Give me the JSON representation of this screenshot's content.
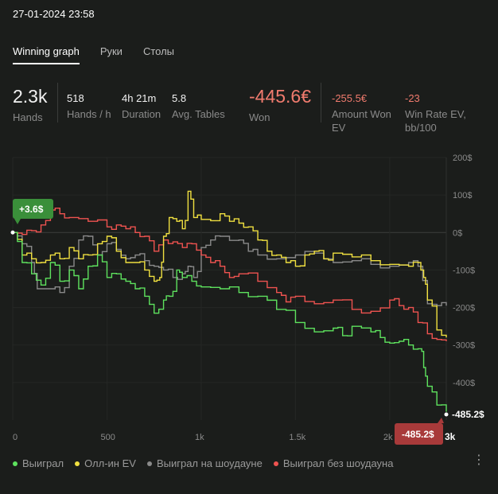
{
  "header": {
    "datetime": "27-01-2024 23:58"
  },
  "tabs": [
    {
      "label": "Winning graph",
      "active": true
    },
    {
      "label": "Руки",
      "active": false
    },
    {
      "label": "Столы",
      "active": false
    }
  ],
  "stats": {
    "hands": {
      "value": "2.3k",
      "label": "Hands"
    },
    "hands_per_hour": {
      "value": "518",
      "label": "Hands / h"
    },
    "duration": {
      "value": "4h 21m",
      "label": "Duration"
    },
    "avg_tables": {
      "value": "5.8",
      "label": "Avg. Tables"
    },
    "won": {
      "value": "-445.6€",
      "label": "Won"
    },
    "amount_won_ev": {
      "value": "-255.5€",
      "label1": "Amount Won",
      "label2": "EV"
    },
    "win_rate_ev": {
      "value": "-23",
      "label1": "Win Rate EV,",
      "label2": "bb/100"
    }
  },
  "chart_data": {
    "type": "line",
    "x_ticks": [
      "0",
      "500",
      "1k",
      "1.5k",
      "2k"
    ],
    "x_last_label": "3k",
    "y_ticks": [
      "200$",
      "100$",
      "0$",
      "-100$",
      "-200$",
      "-300$",
      "-400$"
    ],
    "xlim": [
      0,
      2300
    ],
    "ylim": [
      -500,
      200
    ],
    "start_badge": "+3.6$",
    "end_badge": "-485.2$",
    "end_label": "-485.2$",
    "series": [
      {
        "name": "Выиграл",
        "color": "#5ee25e",
        "points": [
          [
            0,
            0
          ],
          [
            50,
            -80
          ],
          [
            100,
            -110
          ],
          [
            150,
            -140
          ],
          [
            200,
            -80
          ],
          [
            250,
            -130
          ],
          [
            300,
            -100
          ],
          [
            350,
            -150
          ],
          [
            400,
            -90
          ],
          [
            450,
            -60
          ],
          [
            500,
            -120
          ],
          [
            550,
            -110
          ],
          [
            600,
            -130
          ],
          [
            650,
            -150
          ],
          [
            700,
            -170
          ],
          [
            750,
            -215
          ],
          [
            800,
            -180
          ],
          [
            830,
            -170
          ],
          [
            870,
            -100
          ],
          [
            900,
            -120
          ],
          [
            950,
            -130
          ],
          [
            1000,
            -145
          ],
          [
            1100,
            -150
          ],
          [
            1200,
            -160
          ],
          [
            1300,
            -170
          ],
          [
            1400,
            -205
          ],
          [
            1500,
            -240
          ],
          [
            1600,
            -265
          ],
          [
            1700,
            -255
          ],
          [
            1750,
            -275
          ],
          [
            1800,
            -250
          ],
          [
            1900,
            -265
          ],
          [
            1950,
            -280
          ],
          [
            2000,
            -295
          ],
          [
            2050,
            -290
          ],
          [
            2100,
            -300
          ],
          [
            2150,
            -310
          ],
          [
            2160,
            -310
          ],
          [
            2180,
            -360
          ],
          [
            2200,
            -410
          ],
          [
            2250,
            -460
          ],
          [
            2300,
            -485.2
          ]
        ]
      },
      {
        "name": "Олл-ин EV",
        "color": "#f0e040",
        "points": [
          [
            0,
            0
          ],
          [
            50,
            -60
          ],
          [
            100,
            -70
          ],
          [
            150,
            -80
          ],
          [
            200,
            -60
          ],
          [
            250,
            -70
          ],
          [
            300,
            -40
          ],
          [
            350,
            -70
          ],
          [
            400,
            -60
          ],
          [
            450,
            -30
          ],
          [
            500,
            -10
          ],
          [
            550,
            -50
          ],
          [
            600,
            -80
          ],
          [
            650,
            -80
          ],
          [
            700,
            -100
          ],
          [
            750,
            -130
          ],
          [
            780,
            -120
          ],
          [
            800,
            -10
          ],
          [
            830,
            40
          ],
          [
            870,
            30
          ],
          [
            900,
            10
          ],
          [
            930,
            110
          ],
          [
            960,
            40
          ],
          [
            1000,
            35
          ],
          [
            1100,
            50
          ],
          [
            1150,
            30
          ],
          [
            1200,
            25
          ],
          [
            1250,
            15
          ],
          [
            1300,
            -20
          ],
          [
            1350,
            -50
          ],
          [
            1400,
            -60
          ],
          [
            1450,
            -80
          ],
          [
            1500,
            -90
          ],
          [
            1550,
            -60
          ],
          [
            1600,
            -50
          ],
          [
            1650,
            -70
          ],
          [
            1700,
            -55
          ],
          [
            1800,
            -65
          ],
          [
            1900,
            -75
          ],
          [
            2000,
            -85
          ],
          [
            2100,
            -90
          ],
          [
            2150,
            -80
          ],
          [
            2180,
            -120
          ],
          [
            2200,
            -180
          ],
          [
            2250,
            -260
          ],
          [
            2300,
            -280
          ]
        ]
      },
      {
        "name": "Выиграл на шоудауне",
        "color": "#8a8a8a",
        "points": [
          [
            0,
            0
          ],
          [
            50,
            -30
          ],
          [
            100,
            -80
          ],
          [
            130,
            -150
          ],
          [
            200,
            -150
          ],
          [
            250,
            -160
          ],
          [
            300,
            -90
          ],
          [
            350,
            -20
          ],
          [
            400,
            -10
          ],
          [
            450,
            -60
          ],
          [
            500,
            -30
          ],
          [
            550,
            -45
          ],
          [
            600,
            -70
          ],
          [
            650,
            -60
          ],
          [
            700,
            -75
          ],
          [
            750,
            -90
          ],
          [
            800,
            -100
          ],
          [
            850,
            -120
          ],
          [
            900,
            -110
          ],
          [
            930,
            -90
          ],
          [
            960,
            -120
          ],
          [
            1000,
            -40
          ],
          [
            1050,
            -20
          ],
          [
            1100,
            -10
          ],
          [
            1200,
            -20
          ],
          [
            1250,
            -50
          ],
          [
            1300,
            -60
          ],
          [
            1400,
            -70
          ],
          [
            1500,
            -60
          ],
          [
            1600,
            -55
          ],
          [
            1700,
            -80
          ],
          [
            1800,
            -75
          ],
          [
            1900,
            -85
          ],
          [
            2000,
            -90
          ],
          [
            2100,
            -80
          ],
          [
            2150,
            -90
          ],
          [
            2200,
            -190
          ],
          [
            2250,
            -195
          ],
          [
            2300,
            -195
          ]
        ]
      },
      {
        "name": "Выиграл без шоудауна",
        "color": "#ef5350",
        "points": [
          [
            0,
            0
          ],
          [
            50,
            -5
          ],
          [
            100,
            5
          ],
          [
            150,
            20
          ],
          [
            200,
            60
          ],
          [
            250,
            50
          ],
          [
            300,
            40
          ],
          [
            400,
            30
          ],
          [
            500,
            15
          ],
          [
            550,
            20
          ],
          [
            600,
            10
          ],
          [
            650,
            0
          ],
          [
            700,
            -10
          ],
          [
            750,
            -50
          ],
          [
            800,
            -20
          ],
          [
            850,
            -25
          ],
          [
            900,
            -40
          ],
          [
            950,
            -30
          ],
          [
            1000,
            -60
          ],
          [
            1050,
            -80
          ],
          [
            1100,
            -90
          ],
          [
            1150,
            -120
          ],
          [
            1200,
            -110
          ],
          [
            1300,
            -130
          ],
          [
            1400,
            -160
          ],
          [
            1450,
            -185
          ],
          [
            1500,
            -170
          ],
          [
            1600,
            -190
          ],
          [
            1700,
            -180
          ],
          [
            1800,
            -205
          ],
          [
            1900,
            -210
          ],
          [
            2000,
            -180
          ],
          [
            2050,
            -195
          ],
          [
            2100,
            -200
          ],
          [
            2150,
            -240
          ],
          [
            2200,
            -270
          ],
          [
            2250,
            -285
          ],
          [
            2300,
            -290
          ]
        ]
      }
    ]
  },
  "legend": [
    {
      "label": "Выиграл",
      "color": "#5ee25e"
    },
    {
      "label": "Олл-ин EV",
      "color": "#f0e040"
    },
    {
      "label": "Выиграл на шоудауне",
      "color": "#8a8a8a"
    },
    {
      "label": "Выиграл без шоудауна",
      "color": "#ef5350"
    }
  ],
  "menu": {
    "kebab_icon": "⋮"
  }
}
